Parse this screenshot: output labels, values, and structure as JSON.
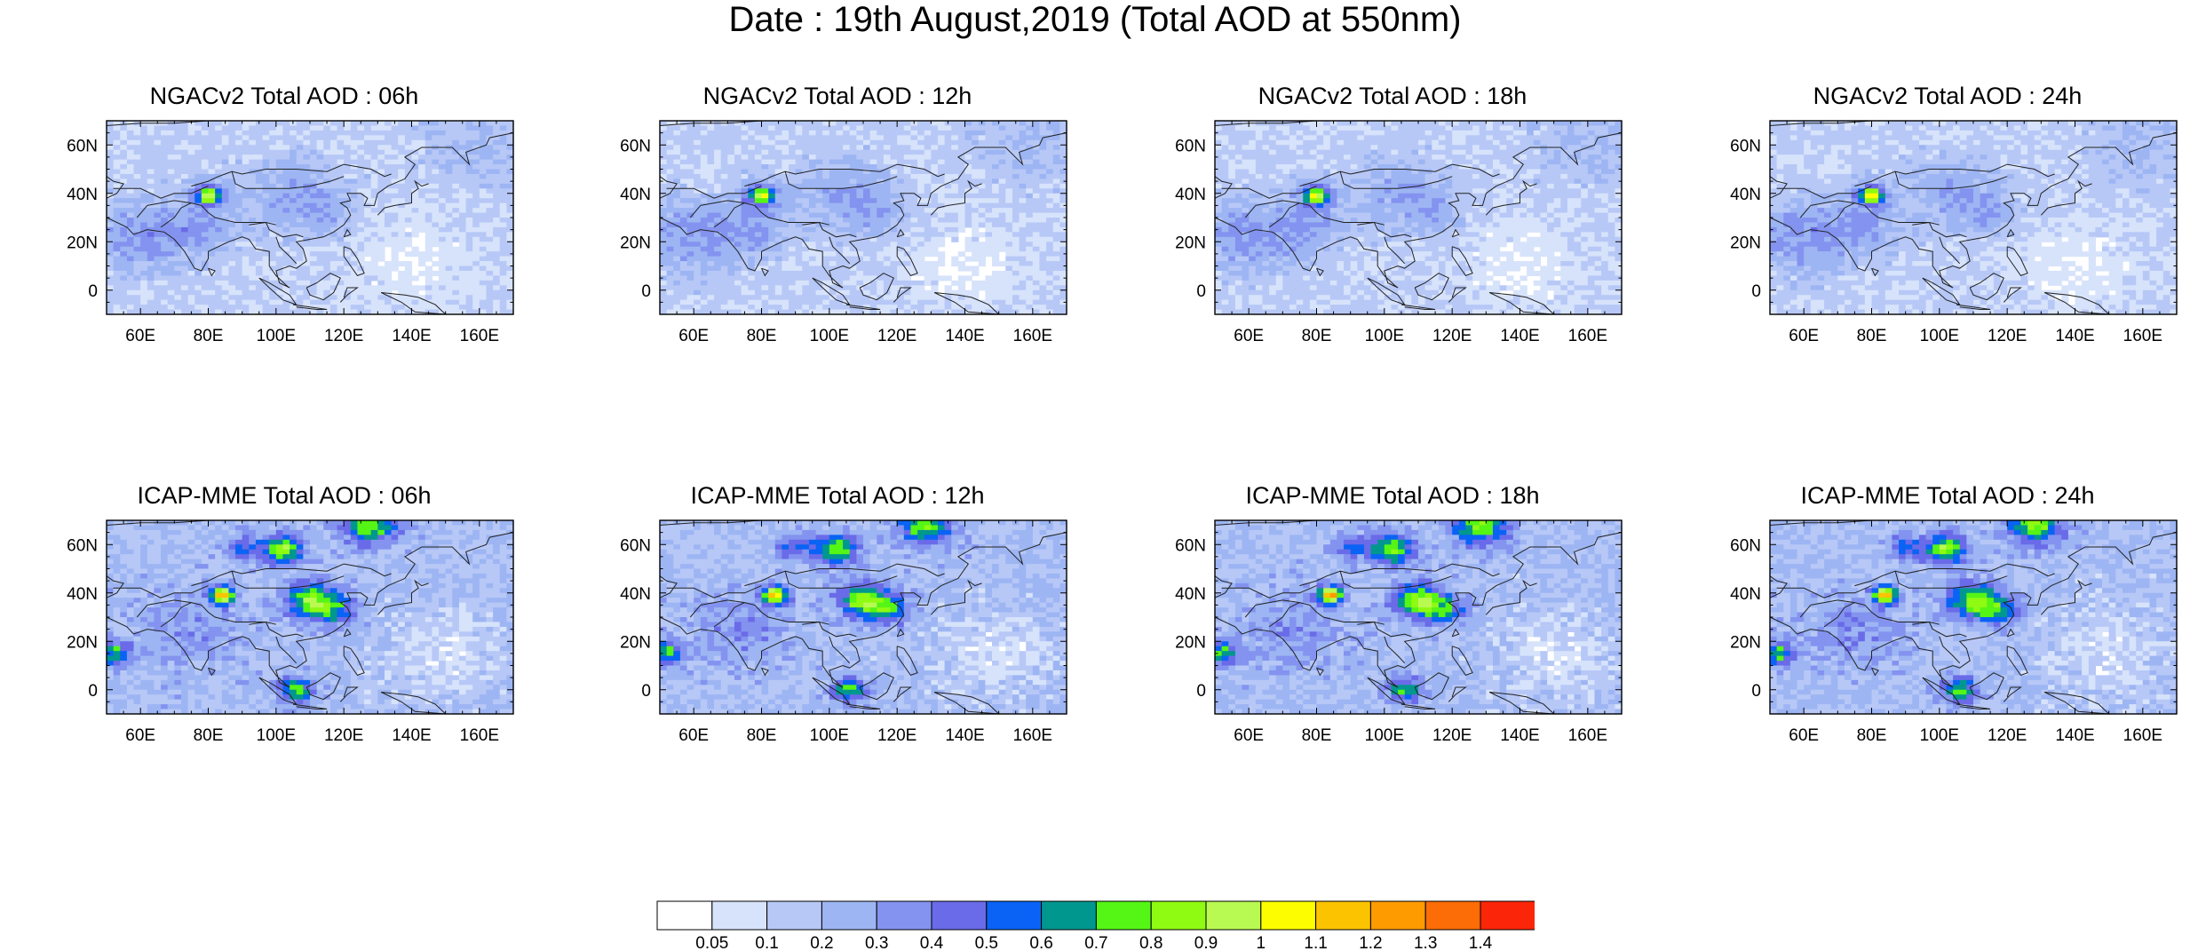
{
  "title": "Date : 19th August,2019 (Total AOD at 550nm)",
  "panels": [
    {
      "title": "NGACv2 Total AOD : 06h",
      "model": "ngac"
    },
    {
      "title": "NGACv2 Total AOD : 12h",
      "model": "ngac"
    },
    {
      "title": "NGACv2 Total AOD : 18h",
      "model": "ngac"
    },
    {
      "title": "NGACv2 Total AOD : 24h",
      "model": "ngac"
    },
    {
      "title": "ICAP-MME Total AOD : 06h",
      "model": "icap"
    },
    {
      "title": "ICAP-MME Total AOD : 12h",
      "model": "icap"
    },
    {
      "title": "ICAP-MME Total AOD : 18h",
      "model": "icap"
    },
    {
      "title": "ICAP-MME Total AOD : 24h",
      "model": "icap"
    }
  ],
  "map": {
    "lon_range": [
      50,
      170
    ],
    "lat_range": [
      -10,
      70
    ],
    "lon_ticks": [
      "60E",
      "80E",
      "100E",
      "120E",
      "140E",
      "160E"
    ],
    "lat_ticks": [
      "0",
      "20N",
      "40N",
      "60N"
    ]
  },
  "colorbar": {
    "labels": [
      "0.05",
      "0.1",
      "0.2",
      "0.3",
      "0.4",
      "0.5",
      "0.6",
      "0.7",
      "0.8",
      "0.9",
      "1",
      "1.1",
      "1.2",
      "1.3",
      "1.4"
    ],
    "colors": [
      "#ffffff",
      "#d7e3fb",
      "#b7c8f7",
      "#9db5f3",
      "#8393ef",
      "#6a6be8",
      "#0a63f5",
      "#00978f",
      "#55f516",
      "#8ffa12",
      "#b9fa52",
      "#fdfd00",
      "#fcc400",
      "#fd9b00",
      "#fc6c07",
      "#fb2609"
    ]
  }
}
